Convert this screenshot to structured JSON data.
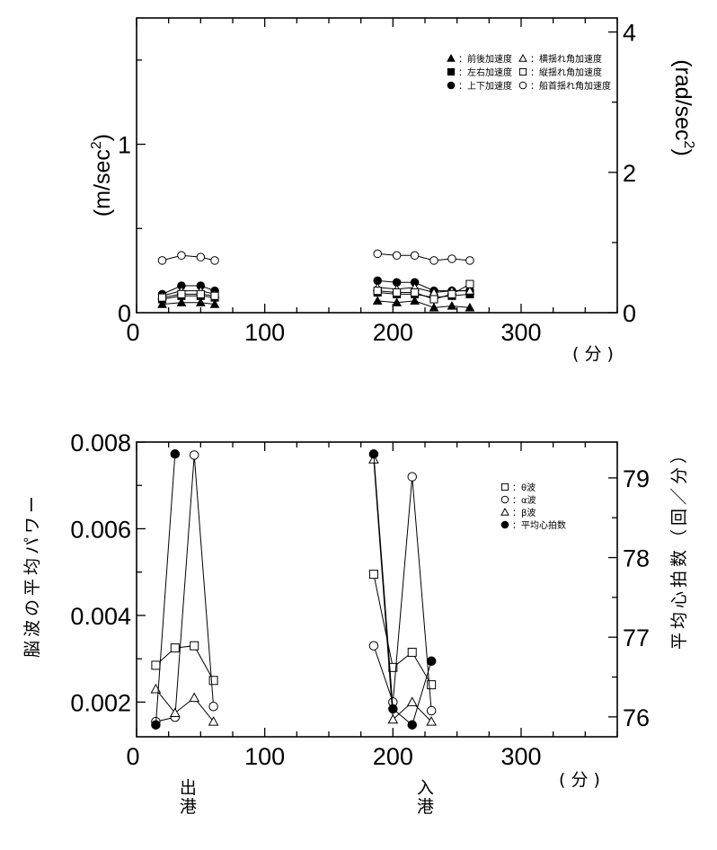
{
  "chart_data": [
    {
      "type": "line",
      "xlim": [
        0,
        375
      ],
      "xticks": [
        0,
        100,
        200,
        300
      ],
      "x_unit_label": "( 分 )",
      "left_axis": {
        "label_main": "(m/sec",
        "label_sup": "2",
        "label_close": ")",
        "ylim": [
          0,
          1.75
        ],
        "tick_values": [
          1
        ],
        "zero_label": "0"
      },
      "right_axis": {
        "label_main": "(rad/sec",
        "label_sup": "2",
        "label_close": ")",
        "ylim": [
          0,
          4.2
        ],
        "tick_values": [
          0,
          2,
          4
        ]
      },
      "legend_position": "top-right",
      "series": [
        {
          "name": "前後加速度",
          "marker": "triangle-filled",
          "axis": "left",
          "x": [
            20,
            35,
            50,
            61,
            188,
            203,
            217,
            232,
            246,
            260
          ],
          "y": [
            0.05,
            0.06,
            0.06,
            0.05,
            0.07,
            0.06,
            0.07,
            0.03,
            0.04,
            0.03
          ]
        },
        {
          "name": "左右加速度",
          "marker": "square-filled",
          "axis": "left",
          "x": [
            20,
            35,
            50,
            61,
            188,
            203,
            217,
            232,
            246,
            260
          ],
          "y": [
            0.08,
            0.1,
            0.1,
            0.09,
            0.12,
            0.11,
            0.11,
            0.09,
            0.1,
            0.11
          ]
        },
        {
          "name": "上下加速度",
          "marker": "circle-filled",
          "axis": "left",
          "x": [
            20,
            35,
            50,
            61,
            188,
            203,
            217,
            232,
            246,
            260
          ],
          "y": [
            0.11,
            0.16,
            0.16,
            0.13,
            0.19,
            0.18,
            0.18,
            0.13,
            0.13,
            0.13
          ]
        },
        {
          "name": "横揺れ角加速度",
          "marker": "triangle-open",
          "axis": "left",
          "x": [
            20,
            35,
            50,
            61,
            188,
            203,
            217,
            232,
            246,
            260
          ],
          "y": [
            0.1,
            0.13,
            0.13,
            0.11,
            0.15,
            0.14,
            0.15,
            0.12,
            0.13,
            0.13
          ]
        },
        {
          "name": "縦揺れ角加速度",
          "marker": "square-open",
          "axis": "left",
          "x": [
            20,
            35,
            50,
            61,
            188,
            203,
            217,
            232,
            246,
            260
          ],
          "y": [
            0.09,
            0.11,
            0.11,
            0.1,
            0.13,
            0.12,
            0.12,
            0.08,
            0.11,
            0.17
          ]
        },
        {
          "name": "船首揺れ角加速度",
          "marker": "circle-open",
          "axis": "left",
          "x": [
            20,
            35,
            50,
            61,
            188,
            203,
            217,
            232,
            246,
            260
          ],
          "y": [
            0.31,
            0.34,
            0.33,
            0.31,
            0.35,
            0.34,
            0.34,
            0.31,
            0.32,
            0.31
          ]
        }
      ]
    },
    {
      "type": "line",
      "xlim": [
        0,
        375
      ],
      "xticks": [
        0,
        100,
        200,
        300
      ],
      "x_unit_label": "( 分 )",
      "left_axis": {
        "label": "脳波の平均パワー",
        "ylim": [
          0.0012,
          0.008
        ],
        "tick_values": [
          0.002,
          0.004,
          0.006,
          0.008
        ],
        "tick_labels": [
          "0.002",
          "0.004",
          "0.006",
          "0.008"
        ]
      },
      "right_axis": {
        "label": "平均心拍数（回／分）",
        "ylim": [
          75.75,
          79.45
        ],
        "tick_values": [
          76,
          77,
          78,
          79
        ]
      },
      "x_markers": [
        {
          "x": 15,
          "label": "出港"
        },
        {
          "x": 200,
          "label": "入港"
        }
      ],
      "legend_position": "top-right",
      "series": [
        {
          "name": "θ波",
          "marker": "square-open",
          "axis": "left",
          "x": [
            15,
            30,
            45,
            60,
            185,
            200,
            215,
            230
          ],
          "y": [
            0.00285,
            0.00325,
            0.0033,
            0.0025,
            0.00495,
            0.0028,
            0.00315,
            0.0024
          ]
        },
        {
          "name": "α波",
          "marker": "circle-open",
          "axis": "left",
          "x": [
            15,
            30,
            45,
            60,
            185,
            200,
            215,
            230
          ],
          "y": [
            0.00155,
            0.00165,
            0.0077,
            0.0019,
            0.0033,
            0.002,
            0.0072,
            0.0018
          ]
        },
        {
          "name": "β波",
          "marker": "triangle-open",
          "axis": "left",
          "x": [
            15,
            30,
            45,
            60,
            185,
            200,
            215,
            230
          ],
          "y": [
            0.0023,
            0.00175,
            0.0021,
            0.00155,
            0.0076,
            0.0016,
            0.002,
            0.00155
          ]
        },
        {
          "name": "平均心拍数",
          "marker": "circle-filled",
          "axis": "right",
          "x": [
            15,
            30,
            185,
            200,
            215,
            230
          ],
          "y": [
            75.9,
            79.3,
            79.3,
            76.1,
            75.9,
            76.7
          ]
        }
      ]
    }
  ]
}
